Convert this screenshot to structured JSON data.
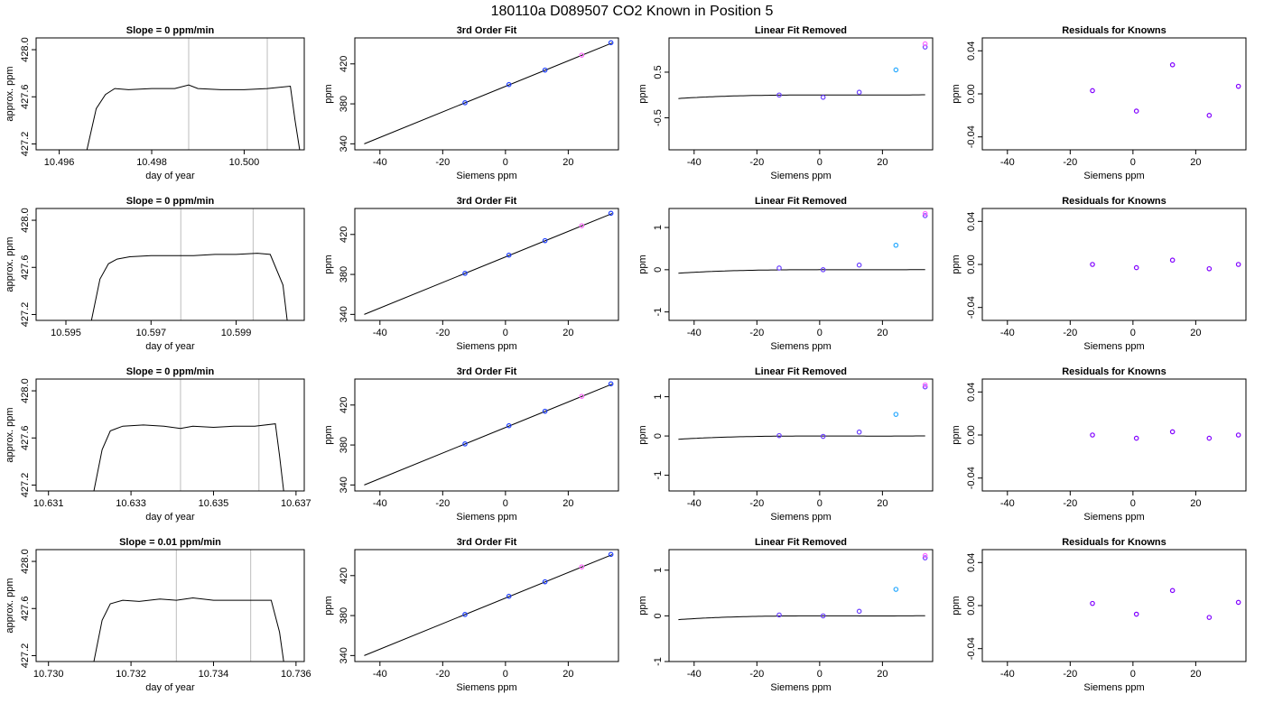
{
  "title": "180110a      D089507   CO2 Known in Position  5",
  "chart_data": [
    {
      "type": "line",
      "title": "Slope =  0  ppm/min",
      "xlabel": "day of year",
      "ylabel": "approx. ppm",
      "xticks": [
        10.496,
        10.498,
        10.5
      ],
      "yticks": [
        427.2,
        427.6,
        428.0
      ],
      "xlim": [
        10.4955,
        10.5013
      ],
      "ylim": [
        427.15,
        428.1
      ],
      "vlines": [
        10.4988,
        10.5005
      ],
      "color": "#000000",
      "x": [
        10.4966,
        10.4968,
        10.497,
        10.4972,
        10.4975,
        10.498,
        10.4985,
        10.4988,
        10.499,
        10.4995,
        10.5,
        10.5005,
        10.501,
        10.5011,
        10.5012
      ],
      "y": [
        427.15,
        427.5,
        427.62,
        427.67,
        427.66,
        427.67,
        427.67,
        427.7,
        427.67,
        427.66,
        427.66,
        427.67,
        427.69,
        427.4,
        427.15
      ]
    },
    {
      "type": "line+scatter",
      "title": "3rd Order Fit",
      "xlabel": "Siemens ppm",
      "ylabel": "ppm",
      "xticks": [
        -40,
        -20,
        0,
        20
      ],
      "yticks": [
        340,
        380,
        420
      ],
      "xlim": [
        -48,
        36
      ],
      "ylim": [
        334,
        446
      ],
      "curve_x": [
        -45,
        34
      ],
      "curve_y": [
        340,
        441
      ],
      "points": [
        {
          "x": -12.9,
          "y": 381.1,
          "c": "#1f3fff"
        },
        {
          "x": 1.1,
          "y": 399.3,
          "c": "#1f3fff"
        },
        {
          "x": 12.6,
          "y": 413.8,
          "c": "#1f3fff"
        },
        {
          "x": 24.3,
          "y": 428.7,
          "c": "#ff66ff"
        },
        {
          "x": 33.6,
          "y": 441.2,
          "c": "#1f3fff"
        }
      ]
    },
    {
      "type": "line+scatter",
      "title": "Linear Fit Removed",
      "xlabel": "Siemens ppm",
      "ylabel": "ppm",
      "xticks": [
        -40,
        -20,
        0,
        20
      ],
      "yticks": [
        -0.5,
        0.5
      ],
      "xlim": [
        -48,
        36
      ],
      "ylim": [
        -1.2,
        1.25
      ],
      "cubic": [
        0.0006,
        1.7e-05,
        -1.4e-06,
        4.08e-08
      ],
      "curve_range": [
        -45,
        33.6
      ],
      "points": [
        {
          "x": -12.9,
          "y": 0.0,
          "c": "#6a3fff"
        },
        {
          "x": 1.1,
          "y": -0.05,
          "c": "#6a3fff"
        },
        {
          "x": 12.6,
          "y": 0.06,
          "c": "#6a3fff"
        },
        {
          "x": 24.3,
          "y": 0.55,
          "c": "#29aaff"
        },
        {
          "x": 33.6,
          "y": 1.05,
          "c": "#6a3fff"
        },
        {
          "x": 33.6,
          "y": 1.12,
          "c": "#ff66ff"
        }
      ]
    },
    {
      "type": "scatter",
      "title": "Residuals for Knowns",
      "xlabel": "Siemens ppm",
      "ylabel": "ppm",
      "xticks": [
        -40,
        -20,
        0,
        20
      ],
      "yticks": [
        -0.04,
        0.0,
        0.04
      ],
      "xlim": [
        -48,
        36
      ],
      "ylim": [
        -0.052,
        0.052
      ],
      "points": [
        {
          "x": -12.9,
          "y": 0.003,
          "c": "#8000ff"
        },
        {
          "x": 1.1,
          "y": -0.016,
          "c": "#8000ff"
        },
        {
          "x": 12.6,
          "y": 0.027,
          "c": "#8000ff"
        },
        {
          "x": 24.3,
          "y": -0.02,
          "c": "#8000ff"
        },
        {
          "x": 33.6,
          "y": 0.007,
          "c": "#8000ff"
        }
      ]
    },
    {
      "type": "line",
      "title": "Slope =  0  ppm/min",
      "xlabel": "day of year",
      "ylabel": "approx. ppm",
      "xticks": [
        10.595,
        10.597,
        10.599
      ],
      "yticks": [
        427.2,
        427.6,
        428.0
      ],
      "xlim": [
        10.5943,
        10.6006
      ],
      "ylim": [
        427.15,
        428.1
      ],
      "vlines": [
        10.5977,
        10.5994
      ],
      "color": "#000000",
      "x": [
        10.5956,
        10.5958,
        10.596,
        10.5962,
        10.5965,
        10.597,
        10.5975,
        10.598,
        10.5985,
        10.599,
        10.5995,
        10.5998,
        10.6001,
        10.6002
      ],
      "y": [
        427.15,
        427.5,
        427.63,
        427.67,
        427.69,
        427.7,
        427.7,
        427.7,
        427.71,
        427.71,
        427.72,
        427.71,
        427.45,
        427.15
      ]
    },
    {
      "type": "line+scatter",
      "title": "3rd Order Fit",
      "xlabel": "Siemens ppm",
      "ylabel": "ppm",
      "xticks": [
        -40,
        -20,
        0,
        20
      ],
      "yticks": [
        340,
        380,
        420
      ],
      "xlim": [
        -48,
        36
      ],
      "ylim": [
        334,
        446
      ],
      "curve_x": [
        -45,
        34
      ],
      "curve_y": [
        340,
        441
      ],
      "points": [
        {
          "x": -12.9,
          "y": 381.1,
          "c": "#1f3fff"
        },
        {
          "x": 1.1,
          "y": 399.3,
          "c": "#1f3fff"
        },
        {
          "x": 12.6,
          "y": 413.8,
          "c": "#1f3fff"
        },
        {
          "x": 24.3,
          "y": 428.7,
          "c": "#ff66ff"
        },
        {
          "x": 33.6,
          "y": 441.2,
          "c": "#1f3fff"
        }
      ]
    },
    {
      "type": "line+scatter",
      "title": "Linear Fit Removed",
      "xlabel": "Siemens ppm",
      "ylabel": "ppm",
      "xticks": [
        -40,
        -20,
        0,
        20
      ],
      "yticks": [
        -1.0,
        0.0,
        1.0
      ],
      "xlim": [
        -48,
        36
      ],
      "ylim": [
        -1.2,
        1.45
      ],
      "cubic": [
        0.0,
        1.7e-05,
        -1.6e-06,
        4.15e-08
      ],
      "curve_range": [
        -45,
        33.6
      ],
      "points": [
        {
          "x": -12.9,
          "y": 0.04,
          "c": "#6a3fff"
        },
        {
          "x": 1.1,
          "y": 0.0,
          "c": "#6a3fff"
        },
        {
          "x": 12.6,
          "y": 0.11,
          "c": "#6a3fff"
        },
        {
          "x": 24.3,
          "y": 0.58,
          "c": "#29aaff"
        },
        {
          "x": 33.6,
          "y": 1.28,
          "c": "#6a3fff"
        },
        {
          "x": 33.6,
          "y": 1.33,
          "c": "#ff66ff"
        }
      ]
    },
    {
      "type": "scatter",
      "title": "Residuals for Knowns",
      "xlabel": "Siemens ppm",
      "ylabel": "ppm",
      "xticks": [
        -40,
        -20,
        0,
        20
      ],
      "yticks": [
        -0.04,
        0.0,
        0.04
      ],
      "xlim": [
        -48,
        36
      ],
      "ylim": [
        -0.052,
        0.052
      ],
      "points": [
        {
          "x": -12.9,
          "y": 0.0,
          "c": "#8000ff"
        },
        {
          "x": 1.1,
          "y": -0.003,
          "c": "#8000ff"
        },
        {
          "x": 12.6,
          "y": 0.004,
          "c": "#8000ff"
        },
        {
          "x": 24.3,
          "y": -0.004,
          "c": "#8000ff"
        },
        {
          "x": 33.6,
          "y": 0.0,
          "c": "#8000ff"
        }
      ]
    },
    {
      "type": "line",
      "title": "Slope =  0  ppm/min",
      "xlabel": "day of year",
      "ylabel": "approx. ppm",
      "xticks": [
        10.631,
        10.633,
        10.635,
        10.637
      ],
      "yticks": [
        427.2,
        427.6,
        428.0
      ],
      "xlim": [
        10.6307,
        10.6372
      ],
      "ylim": [
        427.15,
        428.1
      ],
      "vlines": [
        10.6342,
        10.6361
      ],
      "color": "#000000",
      "x": [
        10.6321,
        10.6323,
        10.6325,
        10.6328,
        10.6333,
        10.6338,
        10.6342,
        10.6345,
        10.635,
        10.6355,
        10.636,
        10.6365,
        10.6366,
        10.6367
      ],
      "y": [
        427.15,
        427.5,
        427.66,
        427.7,
        427.71,
        427.7,
        427.68,
        427.7,
        427.69,
        427.7,
        427.7,
        427.72,
        427.45,
        427.15
      ]
    },
    {
      "type": "line+scatter",
      "title": "3rd Order Fit",
      "xlabel": "Siemens ppm",
      "ylabel": "ppm",
      "xticks": [
        -40,
        -20,
        0,
        20
      ],
      "yticks": [
        340,
        380,
        420
      ],
      "xlim": [
        -48,
        36
      ],
      "ylim": [
        334,
        446
      ],
      "curve_x": [
        -45,
        34
      ],
      "curve_y": [
        340,
        441
      ],
      "points": [
        {
          "x": -12.9,
          "y": 381.1,
          "c": "#1f3fff"
        },
        {
          "x": 1.1,
          "y": 399.3,
          "c": "#1f3fff"
        },
        {
          "x": 12.6,
          "y": 413.8,
          "c": "#1f3fff"
        },
        {
          "x": 24.3,
          "y": 428.7,
          "c": "#ff66ff"
        },
        {
          "x": 33.6,
          "y": 441.2,
          "c": "#1f3fff"
        }
      ]
    },
    {
      "type": "line+scatter",
      "title": "Linear Fit Removed",
      "xlabel": "Siemens ppm",
      "ylabel": "ppm",
      "xticks": [
        -40,
        -20,
        0,
        20
      ],
      "yticks": [
        -1.0,
        0.0,
        1.0
      ],
      "xlim": [
        -48,
        36
      ],
      "ylim": [
        -1.4,
        1.45
      ],
      "cubic": [
        0.0,
        1.7e-05,
        -1.6e-06,
        4.15e-08
      ],
      "curve_range": [
        -45,
        33.6
      ],
      "points": [
        {
          "x": -12.9,
          "y": 0.01,
          "c": "#6a3fff"
        },
        {
          "x": 1.1,
          "y": -0.01,
          "c": "#6a3fff"
        },
        {
          "x": 12.6,
          "y": 0.1,
          "c": "#6a3fff"
        },
        {
          "x": 24.3,
          "y": 0.55,
          "c": "#29aaff"
        },
        {
          "x": 33.6,
          "y": 1.25,
          "c": "#6a3fff"
        },
        {
          "x": 33.6,
          "y": 1.3,
          "c": "#ff66ff"
        }
      ]
    },
    {
      "type": "scatter",
      "title": "Residuals for Knowns",
      "xlabel": "Siemens ppm",
      "ylabel": "ppm",
      "xticks": [
        -40,
        -20,
        0,
        20
      ],
      "yticks": [
        -0.04,
        0.0,
        0.04
      ],
      "xlim": [
        -48,
        36
      ],
      "ylim": [
        -0.052,
        0.052
      ],
      "points": [
        {
          "x": -12.9,
          "y": 0.0,
          "c": "#8000ff"
        },
        {
          "x": 1.1,
          "y": -0.003,
          "c": "#8000ff"
        },
        {
          "x": 12.6,
          "y": 0.003,
          "c": "#8000ff"
        },
        {
          "x": 24.3,
          "y": -0.003,
          "c": "#8000ff"
        },
        {
          "x": 33.6,
          "y": 0.0,
          "c": "#8000ff"
        }
      ]
    },
    {
      "type": "line",
      "title": "Slope =  0.01  ppm/min",
      "xlabel": "day of year",
      "ylabel": "approx. ppm",
      "xticks": [
        10.73,
        10.732,
        10.734,
        10.736
      ],
      "yticks": [
        427.2,
        427.6,
        428.0
      ],
      "xlim": [
        10.7297,
        10.7362
      ],
      "ylim": [
        427.15,
        428.1
      ],
      "vlines": [
        10.7331,
        10.7349
      ],
      "color": "#000000",
      "x": [
        10.7311,
        10.7313,
        10.7315,
        10.7318,
        10.7322,
        10.7327,
        10.7331,
        10.7335,
        10.734,
        10.7345,
        10.735,
        10.7354,
        10.7356,
        10.7357
      ],
      "y": [
        427.15,
        427.5,
        427.64,
        427.67,
        427.66,
        427.68,
        427.67,
        427.69,
        427.67,
        427.67,
        427.67,
        427.67,
        427.4,
        427.15
      ]
    },
    {
      "type": "line+scatter",
      "title": "3rd Order Fit",
      "xlabel": "Siemens ppm",
      "ylabel": "ppm",
      "xticks": [
        -40,
        -20,
        0,
        20
      ],
      "yticks": [
        340,
        380,
        420
      ],
      "xlim": [
        -48,
        36
      ],
      "ylim": [
        334,
        446
      ],
      "curve_x": [
        -45,
        34
      ],
      "curve_y": [
        340,
        441
      ],
      "points": [
        {
          "x": -12.9,
          "y": 381.1,
          "c": "#1f3fff"
        },
        {
          "x": 1.1,
          "y": 399.3,
          "c": "#1f3fff"
        },
        {
          "x": 12.6,
          "y": 413.8,
          "c": "#1f3fff"
        },
        {
          "x": 24.3,
          "y": 428.7,
          "c": "#ff66ff"
        },
        {
          "x": 33.6,
          "y": 441.2,
          "c": "#1f3fff"
        }
      ]
    },
    {
      "type": "line+scatter",
      "title": "Linear Fit Removed",
      "xlabel": "Siemens ppm",
      "ylabel": "ppm",
      "xticks": [
        -40,
        -20,
        0,
        20
      ],
      "yticks": [
        -1.0,
        0.0,
        1.0
      ],
      "xlim": [
        -48,
        36
      ],
      "ylim": [
        -1.0,
        1.45
      ],
      "cubic": [
        0.0,
        1.7e-05,
        -1.6e-06,
        4.15e-08
      ],
      "curve_range": [
        -45,
        33.6
      ],
      "points": [
        {
          "x": -12.9,
          "y": 0.02,
          "c": "#6a3fff"
        },
        {
          "x": 1.1,
          "y": 0.0,
          "c": "#6a3fff"
        },
        {
          "x": 12.6,
          "y": 0.1,
          "c": "#6a3fff"
        },
        {
          "x": 24.3,
          "y": 0.58,
          "c": "#29aaff"
        },
        {
          "x": 33.6,
          "y": 1.27,
          "c": "#6a3fff"
        },
        {
          "x": 33.6,
          "y": 1.32,
          "c": "#ff66ff"
        }
      ]
    },
    {
      "type": "scatter",
      "title": "Residuals for Knowns",
      "xlabel": "Siemens ppm",
      "ylabel": "ppm",
      "xticks": [
        -40,
        -20,
        0,
        20
      ],
      "yticks": [
        -0.04,
        0.0,
        0.04
      ],
      "xlim": [
        -48,
        36
      ],
      "ylim": [
        -0.052,
        0.052
      ],
      "points": [
        {
          "x": -12.9,
          "y": 0.002,
          "c": "#8000ff"
        },
        {
          "x": 1.1,
          "y": -0.008,
          "c": "#8000ff"
        },
        {
          "x": 12.6,
          "y": 0.014,
          "c": "#8000ff"
        },
        {
          "x": 24.3,
          "y": -0.011,
          "c": "#8000ff"
        },
        {
          "x": 33.6,
          "y": 0.003,
          "c": "#8000ff"
        }
      ]
    }
  ]
}
